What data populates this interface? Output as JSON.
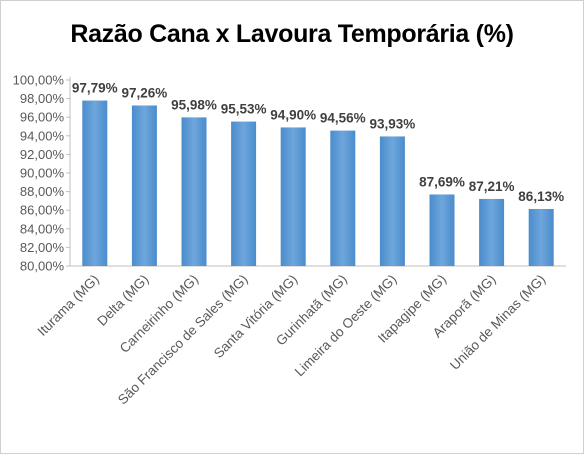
{
  "chart_data": {
    "type": "bar",
    "title": "Razão Cana x Lavoura Temporária (%)",
    "xlabel": "",
    "ylabel": "",
    "categories": [
      "Iturama (MG)",
      "Delta (MG)",
      "Carneirinho (MG)",
      "São Francisco de Sales (MG)",
      "Santa Vitória (MG)",
      "Gurinhatã (MG)",
      "Limeira do Oeste (MG)",
      "Itapagipe (MG)",
      "Araporã (MG)",
      "União de Minas (MG)"
    ],
    "values": [
      97.79,
      97.26,
      95.98,
      95.53,
      94.9,
      94.56,
      93.93,
      87.69,
      87.21,
      86.13
    ],
    "data_labels": [
      "97,79%",
      "97,26%",
      "95,98%",
      "95,53%",
      "94,90%",
      "94,56%",
      "93,93%",
      "87,69%",
      "87,21%",
      "86,13%"
    ],
    "ylim": [
      80,
      100
    ],
    "yticks": [
      80,
      82,
      84,
      86,
      88,
      90,
      92,
      94,
      96,
      98,
      100
    ],
    "ytick_labels": [
      "80,00%",
      "82,00%",
      "84,00%",
      "86,00%",
      "88,00%",
      "90,00%",
      "92,00%",
      "94,00%",
      "96,00%",
      "98,00%",
      "100,00%"
    ],
    "grid": false,
    "legend": "none",
    "bar_color": "#5B9BD5"
  }
}
